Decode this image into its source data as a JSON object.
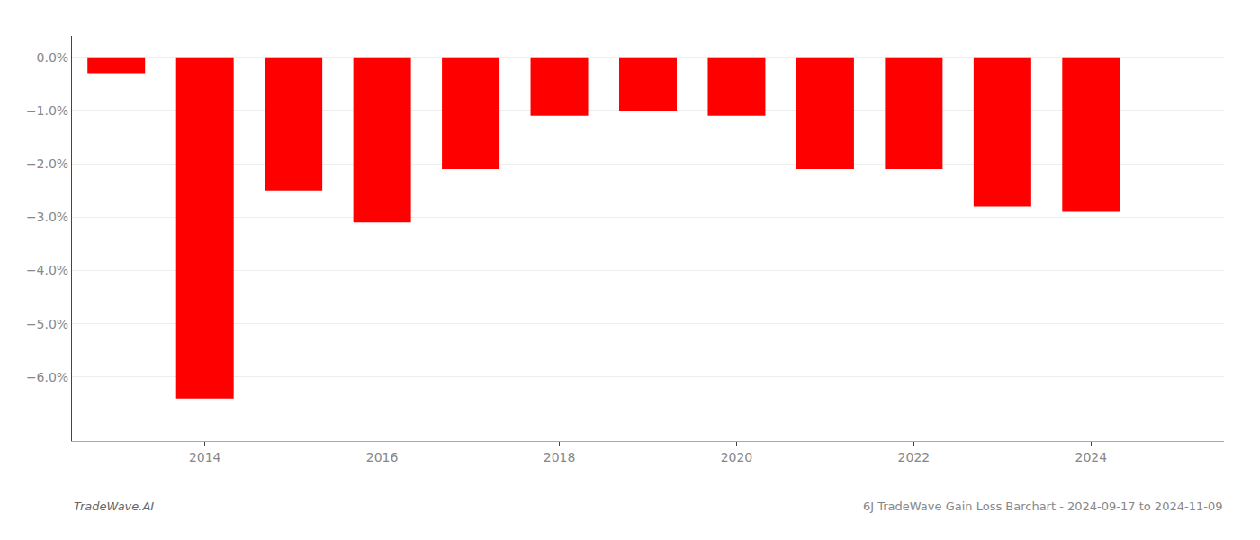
{
  "chart_data": {
    "type": "bar",
    "annotations": [
      "TradeWave.AI",
      "6J TradeWave Gain Loss Barchart - 2024-09-17 to 2024-11-09"
    ],
    "x": [
      2013,
      2014,
      2015,
      2016,
      2017,
      2018,
      2019,
      2020,
      2021,
      2022,
      2023,
      2024
    ],
    "values": [
      -0.003,
      -0.064,
      -0.025,
      -0.031,
      -0.021,
      -0.011,
      -0.01,
      -0.011,
      -0.021,
      -0.021,
      -0.028,
      -0.029
    ],
    "color": "#ff0000",
    "xlim": [
      2012.5,
      2025.5
    ],
    "xticks": [
      2014,
      2016,
      2018,
      2020,
      2022,
      2024
    ],
    "ylim": [
      -0.072,
      0.004
    ],
    "yticks": [
      {
        "value": 0.0,
        "label": "0.0%"
      },
      {
        "value": -0.01,
        "label": "−1.0%"
      },
      {
        "value": -0.02,
        "label": "−2.0%"
      },
      {
        "value": -0.03,
        "label": "−3.0%"
      },
      {
        "value": -0.04,
        "label": "−4.0%"
      },
      {
        "value": -0.05,
        "label": "−5.0%"
      },
      {
        "value": -0.06,
        "label": "−6.0%"
      }
    ],
    "grid": true
  }
}
